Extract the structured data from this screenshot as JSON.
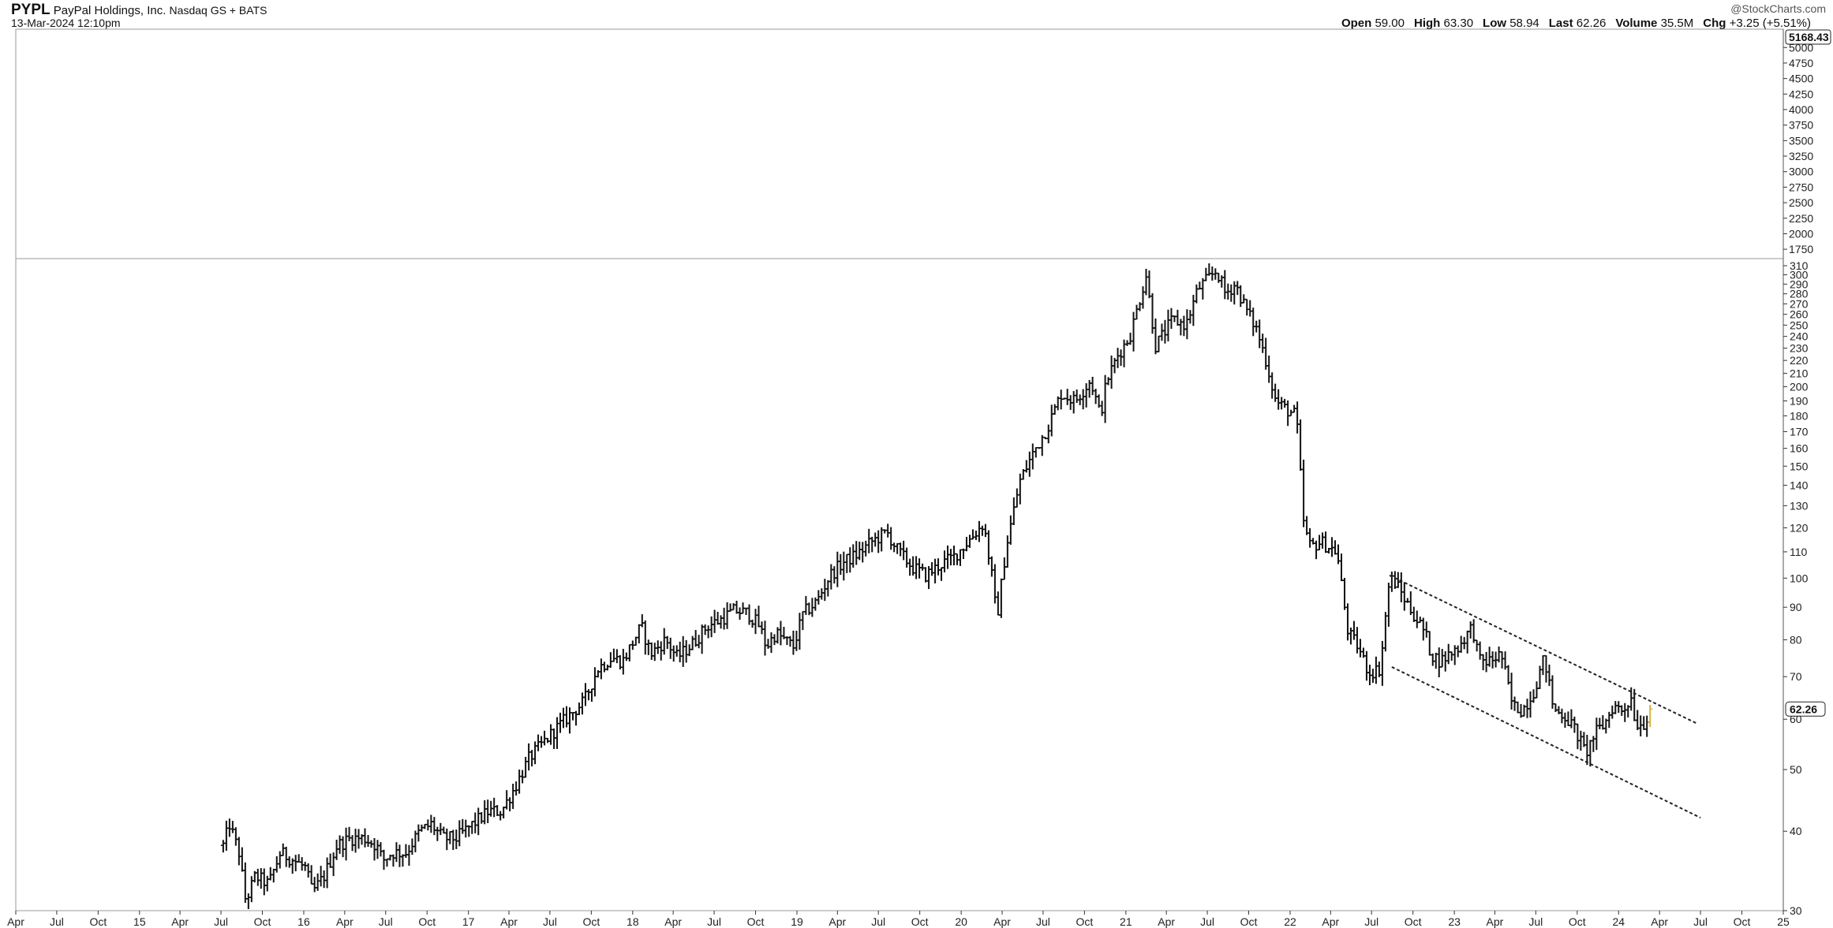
{
  "header": {
    "symbol": "PYPL",
    "company": "PayPal Holdings, Inc.",
    "exchange": "Nasdaq GS + BATS",
    "datetime": "13-Mar-2024 12:10pm",
    "copyright": "@StockCharts.com",
    "stats": [
      {
        "key": "Open",
        "value": "59.00"
      },
      {
        "key": "High",
        "value": "63.30"
      },
      {
        "key": "Low",
        "value": "58.94"
      },
      {
        "key": "Last",
        "value": "62.26"
      },
      {
        "key": "Volume",
        "value": "35.5M"
      },
      {
        "key": "Chg",
        "value": "+3.25 (+5.51%)"
      }
    ]
  },
  "upper_panel": {
    "last_label": "5168.43",
    "ticks": [
      "5000",
      "4750",
      "4500",
      "4250",
      "4000",
      "3750",
      "3500",
      "3250",
      "3000",
      "2750",
      "2500",
      "2250",
      "2000",
      "1750"
    ]
  },
  "colors": {
    "bars": "#111111",
    "last_bar": "#d9b23a",
    "grid": "#9a9a9a"
  },
  "chart_data": {
    "type": "ohlc",
    "title": "PYPL PayPal Holdings, Inc. Nasdaq GS + BATS",
    "scale": "log",
    "ylim": [
      30,
      310
    ],
    "y_ticks": [
      30,
      40,
      50,
      60,
      70,
      80,
      90,
      100,
      110,
      120,
      130,
      140,
      150,
      160,
      170,
      180,
      190,
      200,
      210,
      220,
      230,
      240,
      250,
      260,
      270,
      280,
      290,
      300,
      310
    ],
    "last_price_label": "62.26",
    "x_ticks": [
      "Apr",
      "Jul",
      "Oct",
      "15",
      "Apr",
      "Jul",
      "Oct",
      "16",
      "Apr",
      "Jul",
      "Oct",
      "17",
      "Apr",
      "Jul",
      "Oct",
      "18",
      "Apr",
      "Jul",
      "Oct",
      "19",
      "Apr",
      "Jul",
      "Oct",
      "20",
      "Apr",
      "Jul",
      "Oct",
      "21",
      "Apr",
      "Jul",
      "Oct",
      "22",
      "Apr",
      "Jul",
      "Oct",
      "23",
      "Apr",
      "Jul",
      "Oct",
      "24",
      "Apr",
      "Jul",
      "Oct",
      "25"
    ],
    "x_start": "2014-04-01",
    "x_end": "2025-01-01",
    "price_path": [
      [
        "2015-07-06",
        38
      ],
      [
        "2015-07-20",
        41
      ],
      [
        "2015-08-10",
        37
      ],
      [
        "2015-08-25",
        31
      ],
      [
        "2015-09-15",
        34
      ],
      [
        "2015-10-15",
        33
      ],
      [
        "2015-11-10",
        37
      ],
      [
        "2015-12-10",
        36
      ],
      [
        "2016-01-05",
        35
      ],
      [
        "2016-01-20",
        32
      ],
      [
        "2016-02-15",
        34
      ],
      [
        "2016-03-15",
        38
      ],
      [
        "2016-04-15",
        39
      ],
      [
        "2016-05-15",
        39
      ],
      [
        "2016-06-10",
        38
      ],
      [
        "2016-06-25",
        36
      ],
      [
        "2016-07-15",
        37
      ],
      [
        "2016-08-15",
        37
      ],
      [
        "2016-09-15",
        40
      ],
      [
        "2016-10-10",
        41
      ],
      [
        "2016-11-05",
        39
      ],
      [
        "2016-12-05",
        39
      ],
      [
        "2017-01-10",
        41
      ],
      [
        "2017-02-15",
        43
      ],
      [
        "2017-03-15",
        43
      ],
      [
        "2017-04-15",
        47
      ],
      [
        "2017-05-15",
        52
      ],
      [
        "2017-06-15",
        55
      ],
      [
        "2017-07-15",
        58
      ],
      [
        "2017-08-15",
        61
      ],
      [
        "2017-09-15",
        64
      ],
      [
        "2017-10-15",
        72
      ],
      [
        "2017-11-15",
        75
      ],
      [
        "2017-12-10",
        74
      ],
      [
        "2018-01-20",
        84
      ],
      [
        "2018-02-10",
        76
      ],
      [
        "2018-03-15",
        80
      ],
      [
        "2018-04-10",
        75
      ],
      [
        "2018-05-15",
        79
      ],
      [
        "2018-06-15",
        84
      ],
      [
        "2018-07-15",
        86
      ],
      [
        "2018-08-15",
        89
      ],
      [
        "2018-09-15",
        88
      ],
      [
        "2018-10-10",
        84
      ],
      [
        "2018-10-25",
        78
      ],
      [
        "2018-11-15",
        82
      ],
      [
        "2018-12-24",
        78
      ],
      [
        "2019-01-15",
        88
      ],
      [
        "2019-02-15",
        92
      ],
      [
        "2019-03-15",
        101
      ],
      [
        "2019-04-15",
        106
      ],
      [
        "2019-05-15",
        109
      ],
      [
        "2019-06-15",
        114
      ],
      [
        "2019-07-20",
        118
      ],
      [
        "2019-08-15",
        110
      ],
      [
        "2019-09-15",
        104
      ],
      [
        "2019-10-15",
        101
      ],
      [
        "2019-11-15",
        105
      ],
      [
        "2019-12-15",
        108
      ],
      [
        "2020-01-15",
        114
      ],
      [
        "2020-02-20",
        122
      ],
      [
        "2020-03-10",
        100
      ],
      [
        "2020-03-20",
        86
      ],
      [
        "2020-04-10",
        112
      ],
      [
        "2020-05-10",
        142
      ],
      [
        "2020-06-10",
        158
      ],
      [
        "2020-07-10",
        172
      ],
      [
        "2020-08-10",
        195
      ],
      [
        "2020-09-10",
        190
      ],
      [
        "2020-10-15",
        205
      ],
      [
        "2020-11-05",
        180
      ],
      [
        "2020-11-20",
        205
      ],
      [
        "2020-12-15",
        225
      ],
      [
        "2021-01-10",
        240
      ],
      [
        "2021-02-15",
        300
      ],
      [
        "2021-03-08",
        232
      ],
      [
        "2021-04-15",
        255
      ],
      [
        "2021-05-15",
        250
      ],
      [
        "2021-06-10",
        285
      ],
      [
        "2021-07-22",
        305
      ],
      [
        "2021-08-10",
        280
      ],
      [
        "2021-09-01",
        290
      ],
      [
        "2021-09-25",
        265
      ],
      [
        "2021-10-20",
        245
      ],
      [
        "2021-11-10",
        218
      ],
      [
        "2021-11-30",
        190
      ],
      [
        "2021-12-20",
        185
      ],
      [
        "2022-01-15",
        180
      ],
      [
        "2022-02-01",
        120
      ],
      [
        "2022-02-15",
        112
      ],
      [
        "2022-03-10",
        114
      ],
      [
        "2022-04-15",
        110
      ],
      [
        "2022-05-10",
        82
      ],
      [
        "2022-06-01",
        78
      ],
      [
        "2022-06-25",
        71
      ],
      [
        "2022-07-20",
        72
      ],
      [
        "2022-08-10",
        100
      ],
      [
        "2022-08-25",
        98
      ],
      [
        "2022-09-15",
        92
      ],
      [
        "2022-10-10",
        86
      ],
      [
        "2022-10-28",
        82
      ],
      [
        "2022-11-10",
        76
      ],
      [
        "2022-12-01",
        74
      ],
      [
        "2023-01-10",
        78
      ],
      [
        "2023-02-10",
        84
      ],
      [
        "2023-02-25",
        74
      ],
      [
        "2023-03-20",
        74
      ],
      [
        "2023-04-15",
        76
      ],
      [
        "2023-05-10",
        63
      ],
      [
        "2023-06-01",
        62
      ],
      [
        "2023-06-25",
        66
      ],
      [
        "2023-07-20",
        75
      ],
      [
        "2023-08-10",
        62
      ],
      [
        "2023-09-01",
        61
      ],
      [
        "2023-09-25",
        58
      ],
      [
        "2023-10-20",
        53
      ],
      [
        "2023-11-10",
        57
      ],
      [
        "2023-12-01",
        59
      ],
      [
        "2023-12-20",
        63
      ],
      [
        "2024-01-10",
        62
      ],
      [
        "2024-01-30",
        65
      ],
      [
        "2024-02-08",
        59
      ],
      [
        "2024-02-25",
        59
      ],
      [
        "2024-03-13",
        62.26
      ]
    ],
    "channel_lines": [
      {
        "from": [
          "2022-08-10",
          101
        ],
        "to": [
          "2024-06-25",
          59
        ]
      },
      {
        "from": [
          "2022-08-15",
          72.5
        ],
        "to": [
          "2024-07-01",
          42
        ]
      }
    ]
  }
}
